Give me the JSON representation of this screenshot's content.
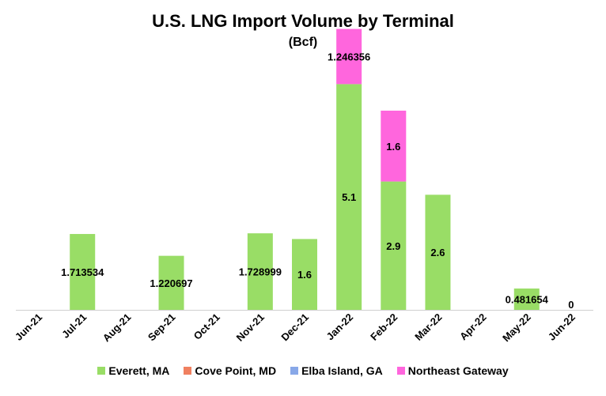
{
  "colors": {
    "everett": "#99DD66",
    "cove_point": "#F08060",
    "elba_island": "#88A8E8",
    "northeast_gateway": "#FF66DD"
  },
  "chart_data": {
    "type": "bar",
    "stacked": true,
    "title": "U.S. LNG Import Volume by Terminal",
    "subtitle": "(Bcf)",
    "categories": [
      "Jun-21",
      "Jul-21",
      "Aug-21",
      "Sep-21",
      "Oct-21",
      "Nov-21",
      "Dec-21",
      "Jan-22",
      "Feb-22",
      "Mar-22",
      "Apr-22",
      "May-22",
      "Jun-22"
    ],
    "series": [
      {
        "name": "Everett, MA",
        "color": "#99DD66",
        "values": [
          0,
          1.713534,
          0,
          1.220697,
          0,
          1.728999,
          1.6,
          5.1,
          2.9,
          2.6,
          0,
          0.481654,
          0
        ]
      },
      {
        "name": "Cove Point, MD",
        "color": "#F08060",
        "values": [
          0,
          0,
          0,
          0,
          0,
          0,
          0,
          0,
          0,
          0,
          0,
          0,
          0
        ]
      },
      {
        "name": "Elba Island, GA",
        "color": "#88A8E8",
        "values": [
          0,
          0,
          0,
          0,
          0,
          0,
          0,
          0,
          0,
          0,
          0,
          0,
          0
        ]
      },
      {
        "name": "Northeast Gateway",
        "color": "#FF66DD",
        "values": [
          0,
          0,
          0,
          0,
          0,
          0,
          0,
          1.246356,
          1.6,
          0,
          0,
          0,
          0
        ]
      }
    ],
    "data_labels": [
      {
        "category": "Jul-21",
        "series": "Everett, MA",
        "text": "1.713534"
      },
      {
        "category": "Sep-21",
        "series": "Everett, MA",
        "text": "1.220697"
      },
      {
        "category": "Nov-21",
        "series": "Everett, MA",
        "text": "1.728999"
      },
      {
        "category": "Dec-21",
        "series": "Everett, MA",
        "text": "1.6"
      },
      {
        "category": "Jan-22",
        "series": "Everett, MA",
        "text": "5.1"
      },
      {
        "category": "Jan-22",
        "series": "Northeast Gateway",
        "text": "1.246356"
      },
      {
        "category": "Feb-22",
        "series": "Everett, MA",
        "text": "2.9"
      },
      {
        "category": "Feb-22",
        "series": "Northeast Gateway",
        "text": "1.6"
      },
      {
        "category": "Mar-22",
        "series": "Everett, MA",
        "text": "2.6"
      },
      {
        "category": "May-22",
        "series": "Everett, MA",
        "text": "0.481654"
      },
      {
        "category": "Jun-22",
        "series": "Everett, MA",
        "text": "0"
      }
    ],
    "ylim": [
      0,
      6.5
    ],
    "grid": false,
    "legend": "bottom"
  }
}
